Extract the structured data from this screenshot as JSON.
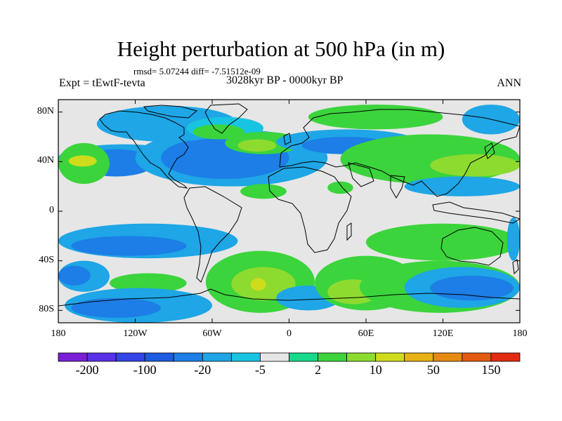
{
  "figure": {
    "title": "Height perturbation at 500 hPa (in m)",
    "stats": "rmsd= 5.07244 diff= -7.51512e-09",
    "experiment": "Expt = tEwtF-tevta",
    "period": "3028kyr BP - 0000kyr BP",
    "season": "ANN"
  },
  "map": {
    "projection": "cylindrical equidistant",
    "lon_range": [
      -180,
      180
    ],
    "lat_range": [
      -90,
      90
    ],
    "lat_ticks": [
      {
        "value": 80,
        "label": "80N"
      },
      {
        "value": 40,
        "label": "40N"
      },
      {
        "value": 0,
        "label": "0"
      },
      {
        "value": -40,
        "label": "40S"
      },
      {
        "value": -80,
        "label": "80S"
      }
    ],
    "lon_ticks": [
      {
        "value": -180,
        "label": "180"
      },
      {
        "value": -120,
        "label": "120W"
      },
      {
        "value": -60,
        "label": "60W"
      },
      {
        "value": 0,
        "label": "0"
      },
      {
        "value": 60,
        "label": "60E"
      },
      {
        "value": 120,
        "label": "120E"
      },
      {
        "value": 180,
        "label": "180"
      }
    ],
    "fill_regions": [
      {
        "level": "-5",
        "lon": [
          -180,
          -78
        ],
        "lat": [
          54,
          32
        ]
      },
      {
        "level": "-20",
        "lon": [
          -165,
          -105
        ],
        "lat": [
          50,
          28
        ]
      },
      {
        "level": "10",
        "lon": [
          -180,
          -140
        ],
        "lat": [
          55,
          22
        ]
      },
      {
        "level": "50",
        "lon": [
          -172,
          -150
        ],
        "lat": [
          45,
          36
        ]
      },
      {
        "level": "-5",
        "lon": [
          -120,
          30
        ],
        "lat": [
          66,
          20
        ]
      },
      {
        "level": "-20",
        "lon": [
          -100,
          0
        ],
        "lat": [
          60,
          26
        ]
      },
      {
        "level": "-5",
        "lon": [
          -150,
          -40
        ],
        "lat": [
          85,
          56
        ]
      },
      {
        "level": "2",
        "lon": [
          -80,
          -20
        ],
        "lat": [
          76,
          58
        ]
      },
      {
        "level": "10",
        "lon": [
          -75,
          -35
        ],
        "lat": [
          70,
          58
        ]
      },
      {
        "level": "10",
        "lon": [
          -50,
          10
        ],
        "lat": [
          64,
          46
        ]
      },
      {
        "level": "20",
        "lon": [
          -40,
          -10
        ],
        "lat": [
          58,
          48
        ]
      },
      {
        "level": "10",
        "lon": [
          15,
          120
        ],
        "lat": [
          86,
          66
        ]
      },
      {
        "level": "-5",
        "lon": [
          -10,
          100
        ],
        "lat": [
          66,
          46
        ]
      },
      {
        "level": "-20",
        "lon": [
          10,
          80
        ],
        "lat": [
          60,
          46
        ]
      },
      {
        "level": "10",
        "lon": [
          40,
          180
        ],
        "lat": [
          62,
          22
        ]
      },
      {
        "level": "20",
        "lon": [
          110,
          180
        ],
        "lat": [
          46,
          28
        ]
      },
      {
        "level": "-5",
        "lon": [
          90,
          180
        ],
        "lat": [
          28,
          12
        ]
      },
      {
        "level": "-5",
        "lon": [
          135,
          180
        ],
        "lat": [
          86,
          62
        ]
      },
      {
        "level": "10",
        "lon": [
          -38,
          -2
        ],
        "lat": [
          22,
          10
        ]
      },
      {
        "level": "10",
        "lon": [
          30,
          50
        ],
        "lat": [
          24,
          14
        ]
      },
      {
        "level": "-5",
        "lon": [
          -180,
          -40
        ],
        "lat": [
          -10,
          -38
        ]
      },
      {
        "level": "-20",
        "lon": [
          -170,
          -80
        ],
        "lat": [
          -20,
          -36
        ]
      },
      {
        "level": "-5",
        "lon": [
          -180,
          -140
        ],
        "lat": [
          -40,
          -65
        ]
      },
      {
        "level": "-20",
        "lon": [
          -180,
          -155
        ],
        "lat": [
          -44,
          -60
        ]
      },
      {
        "level": "10",
        "lon": [
          -140,
          -80
        ],
        "lat": [
          -50,
          -66
        ]
      },
      {
        "level": "-5",
        "lon": [
          -175,
          -60
        ],
        "lat": [
          -62,
          -90
        ]
      },
      {
        "level": "-20",
        "lon": [
          -170,
          -100
        ],
        "lat": [
          -70,
          -86
        ]
      },
      {
        "level": "10",
        "lon": [
          -65,
          20
        ],
        "lat": [
          -32,
          -82
        ]
      },
      {
        "level": "20",
        "lon": [
          -45,
          5
        ],
        "lat": [
          -45,
          -72
        ]
      },
      {
        "level": "50",
        "lon": [
          -30,
          -18
        ],
        "lat": [
          -54,
          -64
        ]
      },
      {
        "level": "-5",
        "lon": [
          -10,
          40
        ],
        "lat": [
          -60,
          -80
        ]
      },
      {
        "level": "10",
        "lon": [
          20,
          100
        ],
        "lat": [
          -36,
          -80
        ]
      },
      {
        "level": "20",
        "lon": [
          30,
          70
        ],
        "lat": [
          -55,
          -75
        ]
      },
      {
        "level": "10",
        "lon": [
          60,
          180
        ],
        "lat": [
          -10,
          -40
        ]
      },
      {
        "level": "10",
        "lon": [
          55,
          180
        ],
        "lat": [
          -40,
          -82
        ]
      },
      {
        "level": "-5",
        "lon": [
          90,
          180
        ],
        "lat": [
          -45,
          -78
        ]
      },
      {
        "level": "-20",
        "lon": [
          110,
          175
        ],
        "lat": [
          -52,
          -72
        ]
      },
      {
        "level": "-5",
        "lon": [
          170,
          180
        ],
        "lat": [
          -5,
          -40
        ]
      }
    ]
  },
  "colorbar": {
    "colors": [
      "#7a1fd6",
      "#5a30e8",
      "#3344e8",
      "#1e5bdf",
      "#1c7ee6",
      "#1ea6e6",
      "#18c4e1",
      "#e6e6e6",
      "#16d98a",
      "#3bd43c",
      "#8edb30",
      "#cfdc1c",
      "#e6b214",
      "#e68a12",
      "#e35a12",
      "#e32a12"
    ],
    "labels": [
      {
        "index": 1,
        "text": "-200"
      },
      {
        "index": 3,
        "text": "-100"
      },
      {
        "index": 5,
        "text": "-20"
      },
      {
        "index": 7,
        "text": "-5"
      },
      {
        "index": 9,
        "text": "2"
      },
      {
        "index": 11,
        "text": "10"
      },
      {
        "index": 13,
        "text": "50"
      },
      {
        "index": 15,
        "text": "150"
      }
    ],
    "level_colors": {
      "-20": "#1c7ee6",
      "-5": "#1ea6e6",
      "2": "#18c4e1",
      "10": "#3bd43c",
      "20": "#8edb30",
      "50": "#cfdc1c"
    }
  }
}
